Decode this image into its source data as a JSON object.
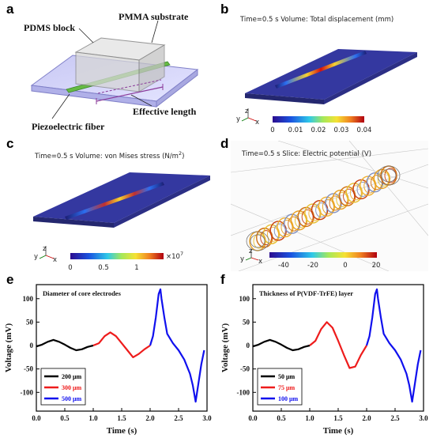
{
  "panel_labels": [
    "a",
    "b",
    "c",
    "d",
    "e",
    "f"
  ],
  "panel_a": {
    "labels": {
      "pdms": "PDMS block",
      "pmma": "PMMA substrate",
      "effective": "Effective length",
      "fiber": "Piezoelectric fiber"
    }
  },
  "panel_b": {
    "title": "Time=0.5 s  Volume: Total displacement (mm)",
    "colorbar_ticks": [
      "0",
      "0.01",
      "0.02",
      "0.03",
      "0.04"
    ],
    "axes": {
      "y": "y",
      "z": "z",
      "x": "x"
    }
  },
  "panel_c": {
    "title": "Time=0.5 s  Volume: von Mises stress (N/m",
    "title_sup": "2",
    "title_end": ")",
    "colorbar_ticks": [
      "0",
      "0.5",
      "1"
    ],
    "colorbar_exp": "×10",
    "colorbar_exp_sup": "7",
    "axes": {
      "y": "y",
      "z": "z",
      "x": "x"
    }
  },
  "panel_d": {
    "title": "Time=0.5 s  Slice: Electric potential (V)",
    "colorbar_ticks": [
      "-40",
      "-20",
      "0",
      "20"
    ],
    "axes": {
      "y": "y",
      "z": "z",
      "x": "x"
    }
  },
  "chart_data": [
    {
      "type": "line",
      "title": "Diameter of core electrodes",
      "xlabel": "Time (s)",
      "ylabel": "Voltage (mV)",
      "xlim": [
        0,
        3
      ],
      "ylim": [
        -140,
        130
      ],
      "xticks": [
        "0.0",
        "0.5",
        "1.0",
        "1.5",
        "2.0",
        "2.5",
        "3.0"
      ],
      "yticks": [
        "100",
        "50",
        "0",
        "-50",
        "-100"
      ],
      "legend_position": "bottom-left",
      "series": [
        {
          "name": "200 μm",
          "color": "#000000",
          "x": [
            0.0,
            0.1,
            0.2,
            0.3,
            0.4,
            0.5,
            0.6,
            0.7,
            0.8,
            0.9,
            1.0
          ],
          "y": [
            -2,
            2,
            8,
            12,
            8,
            2,
            -5,
            -10,
            -8,
            -3,
            0
          ]
        },
        {
          "name": "300 μm",
          "color": "#ee1c1c",
          "x": [
            1.0,
            1.1,
            1.2,
            1.3,
            1.4,
            1.5,
            1.6,
            1.7,
            1.8,
            1.9,
            2.0
          ],
          "y": [
            0,
            5,
            20,
            28,
            20,
            5,
            -10,
            -25,
            -18,
            -8,
            0
          ]
        },
        {
          "name": "500 μm",
          "color": "#1010ee",
          "x": [
            2.0,
            2.05,
            2.1,
            2.15,
            2.18,
            2.2,
            2.25,
            2.3,
            2.4,
            2.5,
            2.6,
            2.7,
            2.75,
            2.8,
            2.85,
            2.9,
            2.95
          ],
          "y": [
            0,
            20,
            60,
            110,
            120,
            100,
            60,
            25,
            5,
            -10,
            -30,
            -60,
            -85,
            -120,
            -80,
            -40,
            -10
          ]
        }
      ]
    },
    {
      "type": "line",
      "title": "Thickness of P(VDF-TrFE) layer",
      "xlabel": "Time (s)",
      "ylabel": "Voltage (mV)",
      "xlim": [
        0,
        3
      ],
      "ylim": [
        -140,
        130
      ],
      "xticks": [
        "0.0",
        "0.5",
        "1.0",
        "1.5",
        "2.0",
        "2.5",
        "3.0"
      ],
      "yticks": [
        "100",
        "50",
        "0",
        "-50",
        "-100"
      ],
      "legend_position": "bottom-left",
      "series": [
        {
          "name": "50 μm",
          "color": "#000000",
          "x": [
            0.0,
            0.1,
            0.2,
            0.3,
            0.4,
            0.5,
            0.6,
            0.7,
            0.8,
            0.9,
            1.0
          ],
          "y": [
            -2,
            2,
            8,
            12,
            8,
            2,
            -5,
            -10,
            -8,
            -3,
            0
          ]
        },
        {
          "name": "75 μm",
          "color": "#ee1c1c",
          "x": [
            1.0,
            1.1,
            1.2,
            1.3,
            1.4,
            1.5,
            1.6,
            1.7,
            1.8,
            1.9,
            2.0
          ],
          "y": [
            0,
            10,
            35,
            50,
            38,
            10,
            -20,
            -48,
            -45,
            -20,
            0
          ]
        },
        {
          "name": "100 μm",
          "color": "#1010ee",
          "x": [
            2.0,
            2.05,
            2.1,
            2.15,
            2.18,
            2.2,
            2.25,
            2.3,
            2.4,
            2.5,
            2.6,
            2.7,
            2.75,
            2.8,
            2.85,
            2.9,
            2.95
          ],
          "y": [
            0,
            20,
            60,
            110,
            120,
            100,
            60,
            25,
            5,
            -10,
            -30,
            -60,
            -85,
            -120,
            -80,
            -40,
            -10
          ]
        }
      ]
    }
  ]
}
